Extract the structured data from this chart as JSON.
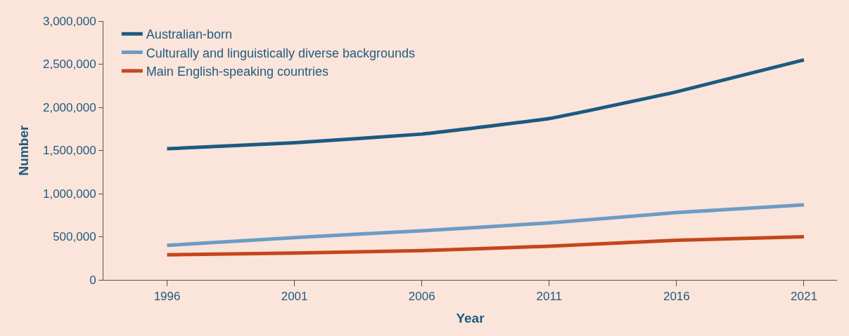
{
  "chart_data": {
    "type": "line",
    "xlabel": "Year",
    "ylabel": "Number",
    "x": [
      1996,
      2001,
      2006,
      2011,
      2016,
      2021
    ],
    "series": [
      {
        "name": "Australian-born",
        "color": "#1b5a82",
        "values": [
          1520000,
          1590000,
          1690000,
          1870000,
          2180000,
          2550000
        ]
      },
      {
        "name": "Culturally and linguistically diverse backgrounds",
        "color": "#6b9cc6",
        "values": [
          400000,
          490000,
          570000,
          660000,
          780000,
          870000
        ]
      },
      {
        "name": "Main English-speaking countries",
        "color": "#c4461c",
        "values": [
          290000,
          310000,
          340000,
          390000,
          460000,
          500000
        ]
      }
    ],
    "xlim": [
      1993.5,
      2022.3
    ],
    "xticks": [
      1996,
      2001,
      2006,
      2011,
      2016,
      2021
    ],
    "ylim": [
      0,
      3000000
    ],
    "yticks": [
      {
        "value": 0,
        "label": "0"
      },
      {
        "value": 500000,
        "label": "500,000"
      },
      {
        "value": 1000000,
        "label": "1,000,000"
      },
      {
        "value": 1500000,
        "label": "1,500,000"
      },
      {
        "value": 2000000,
        "label": "2,000,000"
      },
      {
        "value": 2500000,
        "label": "2,500,000"
      },
      {
        "value": 3000000,
        "label": "3,000,000"
      }
    ],
    "grid": false,
    "legend": "top left",
    "marker": "none",
    "line_style": "solid"
  }
}
